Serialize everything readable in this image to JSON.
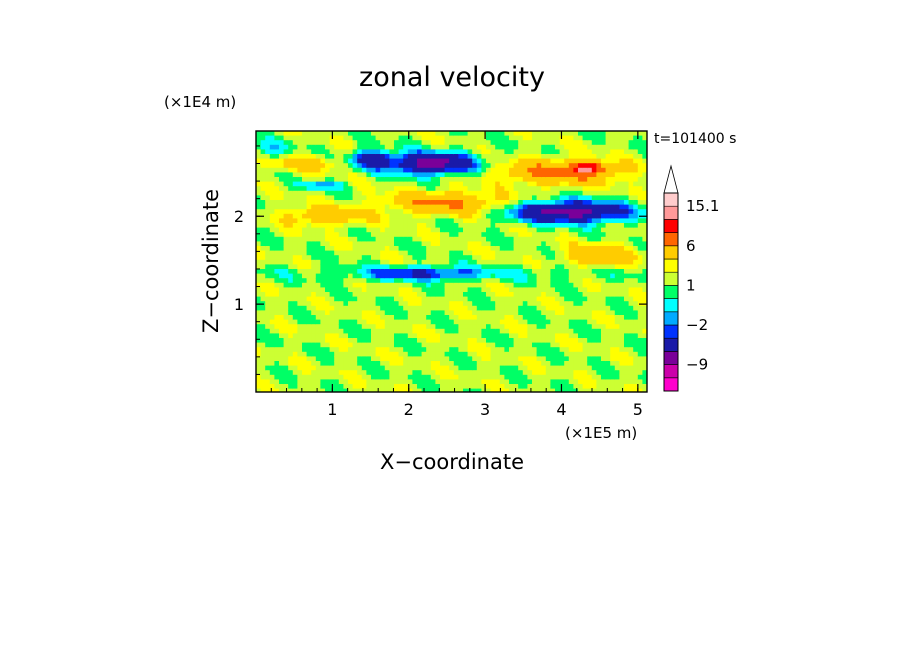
{
  "chart_data": {
    "type": "heatmap",
    "title": "zonal velocity",
    "xlabel": "X−coordinate",
    "ylabel": "Z−coordinate",
    "x_scale_label": "(×1E5 m)",
    "y_scale_label": "(×1E4 m)",
    "time_label": "t=101400 s",
    "xlim": [
      0,
      5.12
    ],
    "ylim": [
      0,
      2.97
    ],
    "xticks": [
      1,
      2,
      3,
      4,
      5
    ],
    "xtick_labels": [
      "1",
      "2",
      "3",
      "4",
      "5"
    ],
    "yticks": [
      1,
      2
    ],
    "ytick_labels": [
      "1",
      "2"
    ],
    "colorbar": {
      "levels": [
        -15,
        -12,
        -9,
        -6,
        -3,
        -2,
        -1,
        0,
        1,
        2,
        3,
        6,
        9,
        12,
        15.1
      ],
      "labels": [
        {
          "value": 15.1,
          "text": "15.1"
        },
        {
          "value": 6,
          "text": "6"
        },
        {
          "value": 1,
          "text": "1"
        },
        {
          "value": -2,
          "text": "−2"
        },
        {
          "value": -9,
          "text": "−9"
        }
      ],
      "colors": [
        "#ff00cc",
        "#cc00aa",
        "#7a0099",
        "#1a1aa8",
        "#0033ff",
        "#00aaff",
        "#00ffff",
        "#00ff66",
        "#ccff33",
        "#ffff00",
        "#ffcc00",
        "#ff6600",
        "#ff0000",
        "#ff9999",
        "#ffcccc"
      ],
      "extend_top": true
    },
    "features": [
      {
        "x": 2.5,
        "z": 1.35,
        "value": -1.0,
        "sx": 3.0,
        "sz": 0.1
      },
      {
        "x": 0.6,
        "z": 2.6,
        "value": 3.0,
        "sx": 0.45,
        "sz": 0.09
      },
      {
        "x": 2.3,
        "z": 2.6,
        "value": -9.0,
        "sx": 0.55,
        "sz": 0.12
      },
      {
        "x": 1.5,
        "z": 2.65,
        "value": -6.0,
        "sx": 0.25,
        "sz": 0.1
      },
      {
        "x": 4.0,
        "z": 2.5,
        "value": 6.0,
        "sx": 0.75,
        "sz": 0.13
      },
      {
        "x": 4.35,
        "z": 2.55,
        "value": 8.0,
        "sx": 0.2,
        "sz": 0.06
      },
      {
        "x": 0.85,
        "z": 2.35,
        "value": -3.0,
        "sx": 0.3,
        "sz": 0.05
      },
      {
        "x": 2.5,
        "z": 2.15,
        "value": 5.0,
        "sx": 0.75,
        "sz": 0.12
      },
      {
        "x": 0.9,
        "z": 2.0,
        "value": 4.0,
        "sx": 0.5,
        "sz": 0.1
      },
      {
        "x": 4.1,
        "z": 2.05,
        "value": -9.0,
        "sx": 0.75,
        "sz": 0.12
      },
      {
        "x": 4.5,
        "z": 1.55,
        "value": 4.0,
        "sx": 0.45,
        "sz": 0.12
      },
      {
        "x": 2.2,
        "z": 1.35,
        "value": -4.0,
        "sx": 0.75,
        "sz": 0.07
      },
      {
        "x": 0.2,
        "z": 2.75,
        "value": -2.0,
        "sx": 0.3,
        "sz": 0.12
      }
    ]
  }
}
